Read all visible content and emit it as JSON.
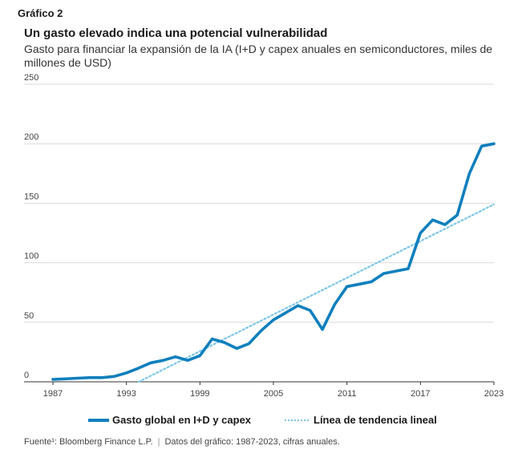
{
  "header": {
    "figure_label": "Gráfico 2",
    "title": "Un gasto elevado indica una potencial vulnerabilidad",
    "subtitle": "Gasto para financiar la expansión de la IA (I+D y capex anuales en semiconductores, miles de millones de USD)"
  },
  "legend": {
    "series_label": "Gasto global en I+D y capex",
    "trend_label": "Línea de tendencia lineal"
  },
  "footer": {
    "source": "Fuente¹: Bloomberg Finance L.P.",
    "data_note": "Datos del gráfico: 1987-2023, cifras anuales."
  },
  "colors": {
    "series": "#0f7fbd",
    "trend": "#7cc6e8",
    "grid": "#d9d9d9",
    "axis": "#333333"
  },
  "chart_data": {
    "type": "line",
    "title": "Un gasto elevado indica una potencial vulnerabilidad",
    "xlabel": "",
    "ylabel": "miles de millones de USD",
    "xlim": [
      1987,
      2023
    ],
    "ylim": [
      0,
      250
    ],
    "x_ticks": [
      1987,
      1993,
      1999,
      2005,
      2011,
      2017,
      2023
    ],
    "y_ticks": [
      0,
      50,
      100,
      150,
      200,
      250
    ],
    "series": [
      {
        "name": "Gasto global en I+D y capex",
        "style": "solid",
        "x": [
          1987,
          1988,
          1989,
          1990,
          1991,
          1992,
          1993,
          1994,
          1995,
          1996,
          1997,
          1998,
          1999,
          2000,
          2001,
          2002,
          2003,
          2004,
          2005,
          2006,
          2007,
          2008,
          2009,
          2010,
          2011,
          2012,
          2013,
          2014,
          2015,
          2016,
          2017,
          2018,
          2019,
          2020,
          2021,
          2022,
          2023
        ],
        "values": [
          2,
          2.5,
          3,
          3.5,
          3.5,
          4.5,
          7.5,
          11.5,
          16,
          18,
          21,
          18,
          22,
          36,
          33,
          28,
          32,
          43,
          52,
          58,
          64,
          60,
          44,
          65,
          80,
          82,
          84,
          91,
          93,
          95,
          125,
          136,
          132,
          140,
          175,
          198,
          200
        ]
      },
      {
        "name": "Línea de tendencia lineal",
        "style": "dotted",
        "x": [
          1994,
          2023
        ],
        "values": [
          0,
          149
        ]
      }
    ]
  }
}
